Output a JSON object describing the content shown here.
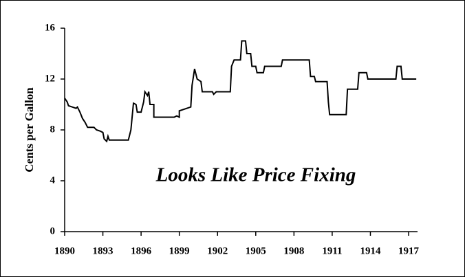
{
  "chart_data": {
    "type": "line",
    "y_label": "Cents per Gallon",
    "annotation": "Looks Like Price Fixing",
    "xlim": [
      1890,
      1917.7
    ],
    "ylim": [
      0,
      16
    ],
    "xticks": [
      1890,
      1893,
      1896,
      1899,
      1902,
      1905,
      1908,
      1911,
      1914,
      1917
    ],
    "yticks": [
      0,
      4,
      8,
      12,
      16
    ],
    "grid": false,
    "x": [
      1890,
      1890.2,
      1890.3,
      1890.6,
      1890.9,
      1891.0,
      1891.2,
      1891.4,
      1891.6,
      1891.8,
      1892.3,
      1892.5,
      1892.8,
      1893.0,
      1893.1,
      1893.3,
      1893.4,
      1893.5,
      1895.0,
      1895.2,
      1895.4,
      1895.6,
      1895.7,
      1896.0,
      1896.2,
      1896.3,
      1896.5,
      1896.6,
      1896.7,
      1897.0,
      1897.0,
      1898.6,
      1898.8,
      1899.0,
      1899.0,
      1899.9,
      1900.0,
      1900.2,
      1900.4,
      1900.7,
      1900.8,
      1901.6,
      1901.7,
      1901.9,
      1903.0,
      1903.1,
      1903.3,
      1903.8,
      1903.9,
      1904.2,
      1904.3,
      1904.6,
      1904.7,
      1905.0,
      1905.1,
      1905.6,
      1905.7,
      1907.0,
      1907.1,
      1909.2,
      1909.3,
      1909.6,
      1909.7,
      1910.6,
      1910.7,
      1910.8,
      1912.1,
      1912.2,
      1913.0,
      1913.1,
      1913.7,
      1913.8,
      1916.0,
      1916.1,
      1916.4,
      1916.5,
      1917.6
    ],
    "series": [
      {
        "color": "#000000",
        "values": [
          10.5,
          10.2,
          9.9,
          9.8,
          9.7,
          9.8,
          9.4,
          8.9,
          8.6,
          8.2,
          8.2,
          8.0,
          7.9,
          7.8,
          7.3,
          7.1,
          7.5,
          7.2,
          7.2,
          8.0,
          10.1,
          10.0,
          9.4,
          9.4,
          10.2,
          11.0,
          10.7,
          11.0,
          10.0,
          10.0,
          9.0,
          9.0,
          9.1,
          9.0,
          9.5,
          9.8,
          11.5,
          12.8,
          12.0,
          11.8,
          11.0,
          11.0,
          10.8,
          11.0,
          11.0,
          13.0,
          13.5,
          13.5,
          15.0,
          15.0,
          14.0,
          14.0,
          13.0,
          13.0,
          12.5,
          12.5,
          13.0,
          13.0,
          13.5,
          13.5,
          12.2,
          12.2,
          11.8,
          11.8,
          10.2,
          9.2,
          9.2,
          11.2,
          11.2,
          12.5,
          12.5,
          12.0,
          12.0,
          13.0,
          13.0,
          12.0,
          12.0
        ]
      }
    ]
  }
}
